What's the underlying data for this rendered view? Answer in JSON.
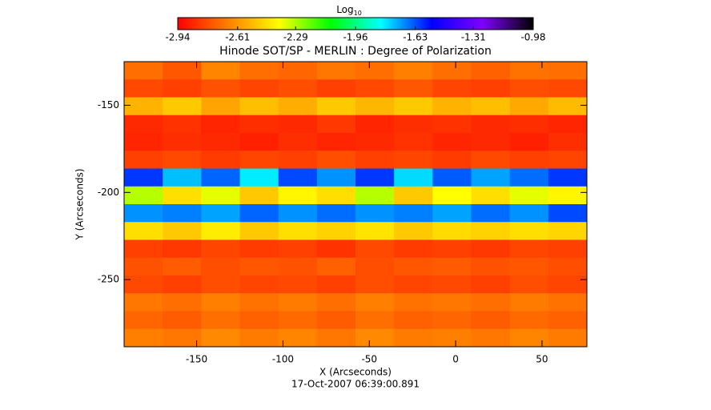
{
  "chart_data": {
    "type": "heatmap",
    "title": "Hinode SOT/SP - MERLIN : Degree of Polarization",
    "colorbar_label": "Log",
    "colorbar_label_sub": "10",
    "x_label": "X (Arcseconds)",
    "y_label": "Y (Arcseconds)",
    "footer": "17-Oct-2007 06:39:00.891",
    "xlim": [
      -192,
      76
    ],
    "ylim": [
      -288.5,
      -125
    ],
    "xticks": [
      -150,
      -100,
      -50,
      0,
      50
    ],
    "yticks": [
      -150,
      -200,
      -250
    ],
    "clim": [
      -2.94,
      -0.98
    ],
    "cticks": [
      -2.94,
      -2.61,
      -2.29,
      -1.96,
      -1.63,
      -1.31,
      -0.98
    ],
    "colormap": [
      "#ff0000",
      "#ff8000",
      "#ffff00",
      "#00ff00",
      "#00ffff",
      "#0000ff",
      "#8000ff",
      "#000000"
    ],
    "z": [
      [
        -2.7,
        -2.75,
        -2.65,
        -2.7,
        -2.72,
        -2.68,
        -2.7,
        -2.66,
        -2.7,
        -2.73,
        -2.69,
        -2.7
      ],
      [
        -2.78,
        -2.8,
        -2.76,
        -2.79,
        -2.77,
        -2.8,
        -2.78,
        -2.75,
        -2.79,
        -2.8,
        -2.77,
        -2.78
      ],
      [
        -2.55,
        -2.5,
        -2.58,
        -2.52,
        -2.56,
        -2.5,
        -2.54,
        -2.5,
        -2.55,
        -2.52,
        -2.57,
        -2.53
      ],
      [
        -2.85,
        -2.83,
        -2.86,
        -2.84,
        -2.85,
        -2.82,
        -2.86,
        -2.84,
        -2.83,
        -2.85,
        -2.84,
        -2.86
      ],
      [
        -2.86,
        -2.84,
        -2.85,
        -2.87,
        -2.84,
        -2.86,
        -2.85,
        -2.83,
        -2.86,
        -2.85,
        -2.87,
        -2.84
      ],
      [
        -2.8,
        -2.78,
        -2.81,
        -2.79,
        -2.8,
        -2.77,
        -2.8,
        -2.79,
        -2.81,
        -2.78,
        -2.8,
        -2.79
      ],
      [
        -1.6,
        -1.75,
        -1.65,
        -1.8,
        -1.62,
        -1.7,
        -1.6,
        -1.78,
        -1.64,
        -1.72,
        -1.66,
        -1.6
      ],
      [
        -2.3,
        -2.45,
        -2.35,
        -2.5,
        -2.4,
        -2.45,
        -2.3,
        -2.5,
        -2.38,
        -2.45,
        -2.35,
        -2.4
      ],
      [
        -1.7,
        -1.68,
        -1.72,
        -1.65,
        -1.7,
        -1.66,
        -1.7,
        -1.68,
        -1.72,
        -1.66,
        -1.7,
        -1.62
      ],
      [
        -2.45,
        -2.5,
        -2.42,
        -2.5,
        -2.45,
        -2.48,
        -2.44,
        -2.5,
        -2.46,
        -2.48,
        -2.45,
        -2.47
      ],
      [
        -2.8,
        -2.82,
        -2.79,
        -2.81,
        -2.8,
        -2.83,
        -2.78,
        -2.81,
        -2.8,
        -2.82,
        -2.79,
        -2.8
      ],
      [
        -2.76,
        -2.74,
        -2.77,
        -2.75,
        -2.76,
        -2.73,
        -2.77,
        -2.75,
        -2.74,
        -2.76,
        -2.75,
        -2.77
      ],
      [
        -2.78,
        -2.8,
        -2.77,
        -2.79,
        -2.78,
        -2.8,
        -2.77,
        -2.79,
        -2.78,
        -2.8,
        -2.77,
        -2.79
      ],
      [
        -2.68,
        -2.7,
        -2.66,
        -2.69,
        -2.67,
        -2.7,
        -2.66,
        -2.69,
        -2.68,
        -2.7,
        -2.67,
        -2.69
      ],
      [
        -2.72,
        -2.74,
        -2.7,
        -2.73,
        -2.71,
        -2.74,
        -2.7,
        -2.73,
        -2.72,
        -2.74,
        -2.71,
        -2.73
      ],
      [
        -2.66,
        -2.68,
        -2.64,
        -2.67,
        -2.65,
        -2.68,
        -2.64,
        -2.67,
        -2.66,
        -2.68,
        -2.65,
        -2.67
      ]
    ]
  }
}
